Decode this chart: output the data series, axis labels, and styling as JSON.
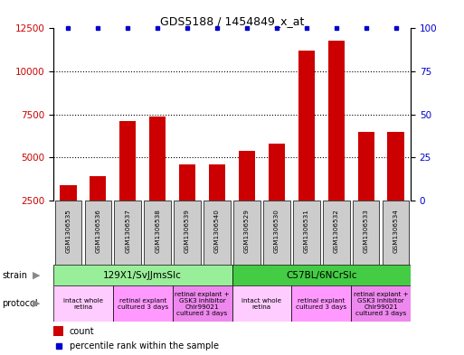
{
  "title": "GDS5188 / 1454849_x_at",
  "samples": [
    "GSM1306535",
    "GSM1306536",
    "GSM1306537",
    "GSM1306538",
    "GSM1306539",
    "GSM1306540",
    "GSM1306529",
    "GSM1306530",
    "GSM1306531",
    "GSM1306532",
    "GSM1306533",
    "GSM1306534"
  ],
  "counts": [
    3400,
    3900,
    7100,
    7400,
    4600,
    4600,
    5400,
    5800,
    11200,
    11800,
    6500,
    6500
  ],
  "percentile": [
    100,
    100,
    100,
    100,
    100,
    100,
    100,
    100,
    100,
    100,
    100,
    100
  ],
  "ylim_left": [
    2500,
    12500
  ],
  "ylim_right": [
    0,
    100
  ],
  "yticks_left": [
    2500,
    5000,
    7500,
    10000,
    12500
  ],
  "yticks_right": [
    0,
    25,
    50,
    75,
    100
  ],
  "bar_color": "#cc0000",
  "dot_color": "#0000cc",
  "bar_width": 0.55,
  "strain_groups": [
    {
      "label": "129X1/SvJJmsSlc",
      "start": 0,
      "end": 6,
      "color": "#99ee99"
    },
    {
      "label": "C57BL/6NCrSlc",
      "start": 6,
      "end": 12,
      "color": "#44cc44"
    }
  ],
  "protocol_groups": [
    {
      "label": "intact whole\nretina",
      "start": 0,
      "end": 2,
      "color": "#ffccff"
    },
    {
      "label": "retinal explant\ncultured 3 days",
      "start": 2,
      "end": 4,
      "color": "#ff99ff"
    },
    {
      "label": "retinal explant +\nGSK3 inhibitor\nChir99021\ncultured 3 days",
      "start": 4,
      "end": 6,
      "color": "#ee88ee"
    },
    {
      "label": "intact whole\nretina",
      "start": 6,
      "end": 8,
      "color": "#ffccff"
    },
    {
      "label": "retinal explant\ncultured 3 days",
      "start": 8,
      "end": 10,
      "color": "#ff99ff"
    },
    {
      "label": "retinal explant +\nGSK3 inhibitor\nChir99021\ncultured 3 days",
      "start": 10,
      "end": 12,
      "color": "#ee88ee"
    }
  ],
  "tick_label_color_left": "#cc0000",
  "tick_label_color_right": "#0000cc",
  "sample_box_color": "#cccccc",
  "arrow_color": "#888888"
}
